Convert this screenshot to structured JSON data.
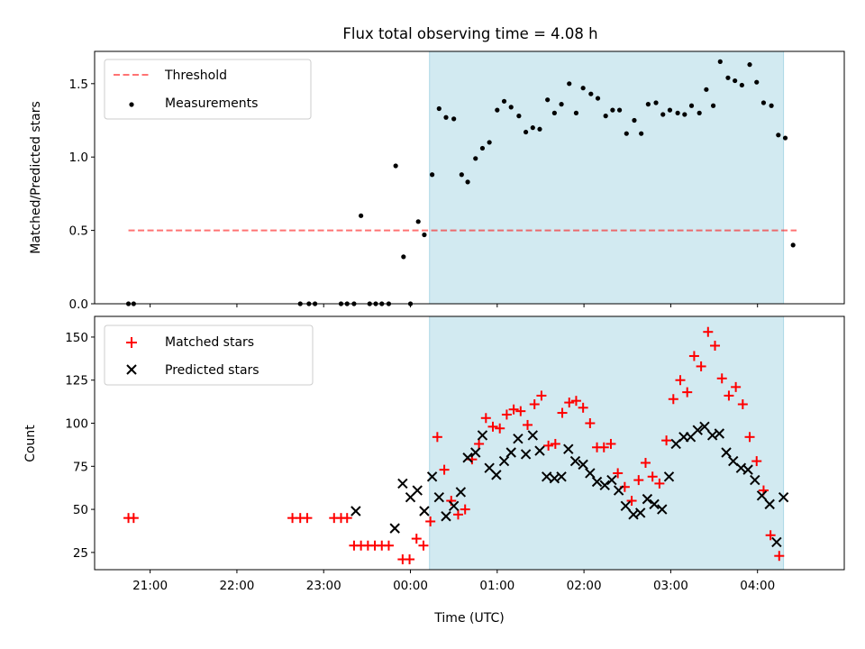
{
  "chart_data": {
    "title": "Flux total observing time = 4.08 h",
    "xlabel": "Time (UTC)",
    "x_unit": "hours UTC, 00:00 = 24",
    "x_ticks": [
      {
        "value": 21,
        "label": "21:00"
      },
      {
        "value": 22,
        "label": "22:00"
      },
      {
        "value": 23,
        "label": "23:00"
      },
      {
        "value": 24,
        "label": "00:00"
      },
      {
        "value": 25,
        "label": "01:00"
      },
      {
        "value": 26,
        "label": "02:00"
      },
      {
        "value": 27,
        "label": "03:00"
      },
      {
        "value": 28,
        "label": "04:00"
      }
    ],
    "xlim": [
      20.36,
      29.0
    ],
    "shaded_span": {
      "start": 24.22,
      "end": 28.3,
      "color": "#add8e6"
    },
    "panels": [
      {
        "type": "scatter",
        "ylabel": "Matched/Predicted stars",
        "ylim": [
          0,
          1.72
        ],
        "y_ticks": [
          0.0,
          0.5,
          1.0,
          1.5
        ],
        "y_tick_labels": [
          "0.0",
          "0.5",
          "1.0",
          "1.5"
        ],
        "legend_position": "top-left",
        "threshold": {
          "name": "Threshold",
          "value": 0.5,
          "x_range": [
            20.75,
            28.45
          ],
          "color": "#ff0000"
        },
        "series": [
          {
            "name": "Measurements",
            "marker": "dot",
            "color": "#000000",
            "points": [
              [
                20.75,
                0
              ],
              [
                20.81,
                0
              ],
              [
                22.73,
                0
              ],
              [
                22.83,
                0
              ],
              [
                22.9,
                0
              ],
              [
                23.2,
                0
              ],
              [
                23.27,
                0
              ],
              [
                23.35,
                0
              ],
              [
                23.43,
                0.6
              ],
              [
                23.53,
                0
              ],
              [
                23.6,
                0
              ],
              [
                23.67,
                0
              ],
              [
                23.75,
                0
              ],
              [
                23.83,
                0.94
              ],
              [
                23.92,
                0.32
              ],
              [
                24.0,
                0
              ],
              [
                24.09,
                0.56
              ],
              [
                24.16,
                0.47
              ],
              [
                24.25,
                0.88
              ],
              [
                24.33,
                1.33
              ],
              [
                24.41,
                1.27
              ],
              [
                24.5,
                1.26
              ],
              [
                24.59,
                0.88
              ],
              [
                24.66,
                0.83
              ],
              [
                24.75,
                0.99
              ],
              [
                24.83,
                1.06
              ],
              [
                24.91,
                1.1
              ],
              [
                25.0,
                1.32
              ],
              [
                25.08,
                1.38
              ],
              [
                25.16,
                1.34
              ],
              [
                25.25,
                1.28
              ],
              [
                25.33,
                1.17
              ],
              [
                25.41,
                1.2
              ],
              [
                25.49,
                1.19
              ],
              [
                25.58,
                1.39
              ],
              [
                25.66,
                1.3
              ],
              [
                25.74,
                1.36
              ],
              [
                25.83,
                1.5
              ],
              [
                25.91,
                1.3
              ],
              [
                25.99,
                1.47
              ],
              [
                26.08,
                1.43
              ],
              [
                26.16,
                1.4
              ],
              [
                26.25,
                1.28
              ],
              [
                26.33,
                1.32
              ],
              [
                26.41,
                1.32
              ],
              [
                26.49,
                1.16
              ],
              [
                26.58,
                1.25
              ],
              [
                26.66,
                1.16
              ],
              [
                26.74,
                1.36
              ],
              [
                26.83,
                1.37
              ],
              [
                26.91,
                1.29
              ],
              [
                26.99,
                1.32
              ],
              [
                27.08,
                1.3
              ],
              [
                27.16,
                1.29
              ],
              [
                27.24,
                1.35
              ],
              [
                27.33,
                1.3
              ],
              [
                27.41,
                1.46
              ],
              [
                27.49,
                1.35
              ],
              [
                27.57,
                1.65
              ],
              [
                27.66,
                1.54
              ],
              [
                27.74,
                1.52
              ],
              [
                27.82,
                1.49
              ],
              [
                27.91,
                1.63
              ],
              [
                27.99,
                1.51
              ],
              [
                28.07,
                1.37
              ],
              [
                28.16,
                1.35
              ],
              [
                28.24,
                1.15
              ],
              [
                28.32,
                1.13
              ],
              [
                28.41,
                0.4
              ]
            ]
          }
        ]
      },
      {
        "type": "scatter",
        "ylabel": "Count",
        "ylim": [
          15,
          162
        ],
        "y_ticks": [
          25,
          50,
          75,
          100,
          125,
          150
        ],
        "y_tick_labels": [
          "25",
          "50",
          "75",
          "100",
          "125",
          "150"
        ],
        "legend_position": "top-left",
        "series": [
          {
            "name": "Matched stars",
            "marker": "plus",
            "color": "#ff0000",
            "points": [
              [
                20.75,
                45
              ],
              [
                20.81,
                45
              ],
              [
                22.64,
                45
              ],
              [
                22.73,
                45
              ],
              [
                22.81,
                45
              ],
              [
                23.12,
                45
              ],
              [
                23.2,
                45
              ],
              [
                23.27,
                45
              ],
              [
                23.35,
                29
              ],
              [
                23.43,
                29
              ],
              [
                23.51,
                29
              ],
              [
                23.59,
                29
              ],
              [
                23.67,
                29
              ],
              [
                23.75,
                29
              ],
              [
                23.91,
                21
              ],
              [
                23.99,
                21
              ],
              [
                24.07,
                33
              ],
              [
                24.15,
                29
              ],
              [
                24.23,
                43
              ],
              [
                24.31,
                92
              ],
              [
                24.39,
                73
              ],
              [
                24.47,
                55
              ],
              [
                24.55,
                47
              ],
              [
                24.63,
                50
              ],
              [
                24.71,
                79
              ],
              [
                24.79,
                88
              ],
              [
                24.87,
                103
              ],
              [
                24.95,
                98
              ],
              [
                25.03,
                97
              ],
              [
                25.11,
                105
              ],
              [
                25.19,
                108
              ],
              [
                25.27,
                107
              ],
              [
                25.35,
                99
              ],
              [
                25.43,
                111
              ],
              [
                25.51,
                116
              ],
              [
                25.59,
                87
              ],
              [
                25.67,
                88
              ],
              [
                25.75,
                106
              ],
              [
                25.83,
                112
              ],
              [
                25.91,
                113
              ],
              [
                25.99,
                109
              ],
              [
                26.07,
                100
              ],
              [
                26.15,
                86
              ],
              [
                26.23,
                86
              ],
              [
                26.31,
                88
              ],
              [
                26.39,
                71
              ],
              [
                26.47,
                63
              ],
              [
                26.55,
                55
              ],
              [
                26.63,
                67
              ],
              [
                26.71,
                77
              ],
              [
                26.79,
                69
              ],
              [
                26.87,
                65
              ],
              [
                26.95,
                90
              ],
              [
                27.03,
                114
              ],
              [
                27.11,
                125
              ],
              [
                27.19,
                118
              ],
              [
                27.27,
                139
              ],
              [
                27.35,
                133
              ],
              [
                27.43,
                153
              ],
              [
                27.51,
                145
              ],
              [
                27.59,
                126
              ],
              [
                27.67,
                116
              ],
              [
                27.75,
                121
              ],
              [
                27.83,
                111
              ],
              [
                27.91,
                92
              ],
              [
                27.99,
                78
              ],
              [
                28.07,
                61
              ],
              [
                28.15,
                35
              ],
              [
                28.25,
                23
              ]
            ]
          },
          {
            "name": "Predicted stars",
            "marker": "x",
            "color": "#000000",
            "points": [
              [
                23.37,
                49
              ],
              [
                23.82,
                39
              ],
              [
                23.91,
                65
              ],
              [
                24.0,
                57
              ],
              [
                24.08,
                61
              ],
              [
                24.16,
                49
              ],
              [
                24.25,
                69
              ],
              [
                24.33,
                57
              ],
              [
                24.41,
                46
              ],
              [
                24.5,
                52
              ],
              [
                24.58,
                60
              ],
              [
                24.66,
                80
              ],
              [
                24.75,
                83
              ],
              [
                24.83,
                93
              ],
              [
                24.91,
                74
              ],
              [
                24.99,
                70
              ],
              [
                25.08,
                78
              ],
              [
                25.16,
                83
              ],
              [
                25.24,
                91
              ],
              [
                25.33,
                82
              ],
              [
                25.41,
                93
              ],
              [
                25.49,
                84
              ],
              [
                25.57,
                69
              ],
              [
                25.66,
                68
              ],
              [
                25.74,
                69
              ],
              [
                25.82,
                85
              ],
              [
                25.9,
                78
              ],
              [
                25.99,
                76
              ],
              [
                26.07,
                71
              ],
              [
                26.15,
                66
              ],
              [
                26.24,
                64
              ],
              [
                26.32,
                67
              ],
              [
                26.4,
                61
              ],
              [
                26.48,
                52
              ],
              [
                26.57,
                47
              ],
              [
                26.65,
                48
              ],
              [
                26.73,
                56
              ],
              [
                26.81,
                53
              ],
              [
                26.9,
                50
              ],
              [
                26.98,
                69
              ],
              [
                27.06,
                88
              ],
              [
                27.15,
                92
              ],
              [
                27.23,
                92
              ],
              [
                27.31,
                96
              ],
              [
                27.39,
                98
              ],
              [
                27.48,
                93
              ],
              [
                27.56,
                94
              ],
              [
                27.64,
                83
              ],
              [
                27.72,
                78
              ],
              [
                27.81,
                74
              ],
              [
                27.89,
                73
              ],
              [
                27.97,
                67
              ],
              [
                28.05,
                58
              ],
              [
                28.14,
                53
              ],
              [
                28.22,
                31
              ],
              [
                28.3,
                57
              ]
            ]
          }
        ]
      }
    ]
  }
}
